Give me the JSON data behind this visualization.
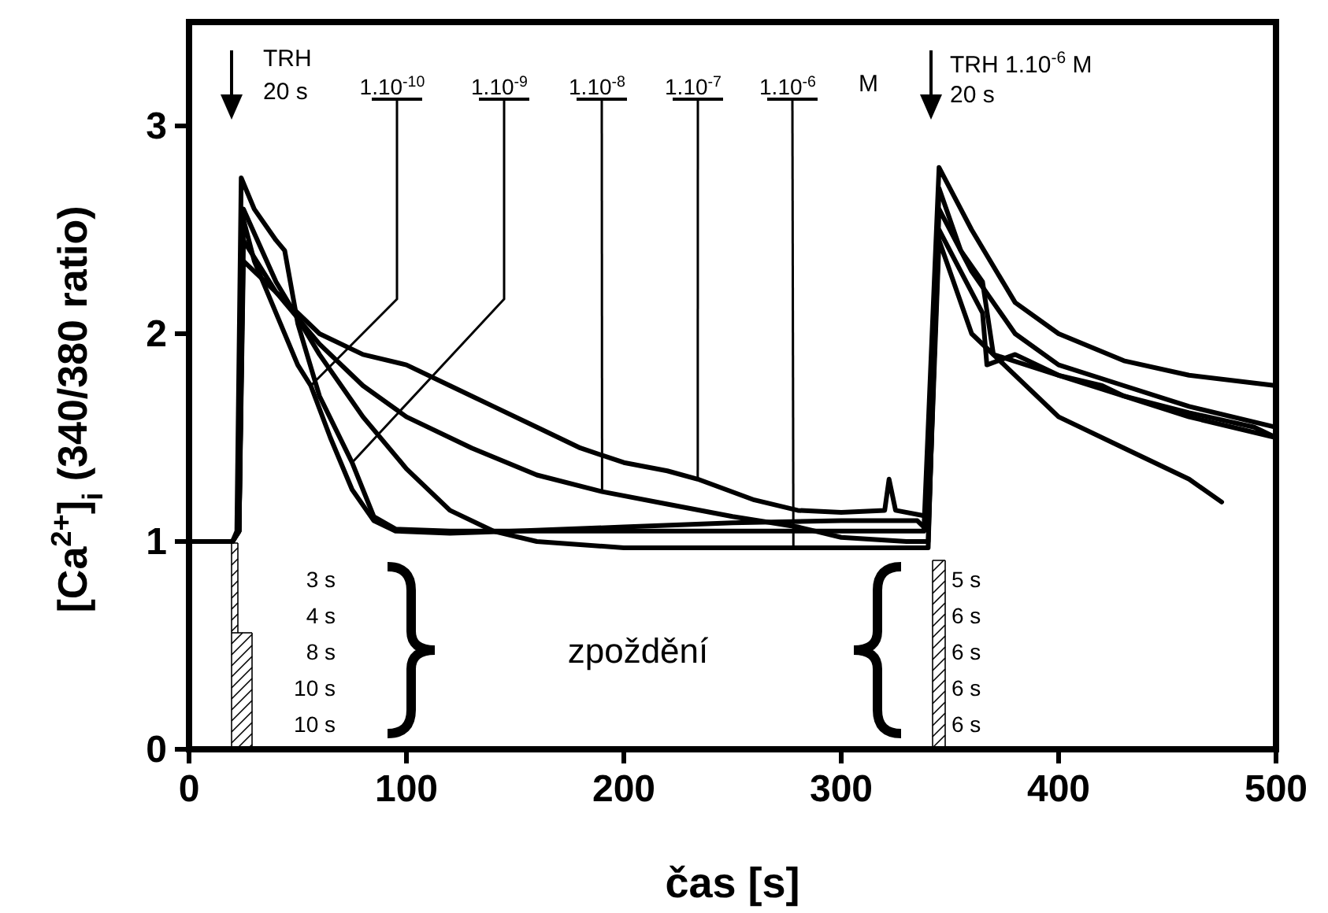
{
  "chart_data": {
    "type": "line",
    "xlabel": "čas [s]",
    "ylabel": "[Ca$^{2+}$]$_{i}$ (340/380 ratio)",
    "x": [
      0,
      20,
      23,
      25,
      30,
      40,
      50,
      56,
      65,
      75,
      85,
      95,
      120,
      150,
      200,
      250,
      300,
      335,
      340,
      345,
      360,
      380,
      400,
      430,
      460,
      475
    ],
    "xlim": [
      0,
      500
    ],
    "ylim": [
      0,
      3.5
    ],
    "xticks": [
      0,
      100,
      200,
      300,
      400,
      500
    ],
    "yticks": [
      0,
      1,
      2,
      3
    ],
    "grid": false,
    "series": [
      {
        "color": "#000000",
        "values": [
          1.0,
          1.0,
          1.05,
          2.55,
          2.35,
          2.1,
          1.85,
          1.75,
          1.5,
          1.25,
          1.1,
          1.05,
          1.04,
          1.05,
          1.07,
          1.09,
          1.1,
          1.1,
          1.05,
          2.45,
          2.0,
          1.8,
          1.6,
          1.45,
          1.3,
          1.19
        ]
      },
      {
        "color": "#000000",
        "x": [
          0,
          20,
          22,
          24,
          30,
          40,
          44,
          50,
          60,
          75,
          85,
          95,
          120,
          200,
          300,
          338,
          345,
          360,
          380,
          400,
          430,
          460,
          500
        ],
        "values": [
          1.0,
          1.0,
          1.05,
          2.75,
          2.6,
          2.45,
          2.4,
          2.05,
          1.7,
          1.38,
          1.12,
          1.06,
          1.05,
          1.05,
          1.05,
          1.05,
          2.8,
          2.5,
          2.15,
          2.0,
          1.87,
          1.8,
          1.75
        ]
      },
      {
        "color": "#000000",
        "x": [
          0,
          20,
          23,
          25,
          40,
          60,
          80,
          100,
          130,
          160,
          190,
          220,
          250,
          280,
          300,
          330,
          340,
          345,
          360,
          380,
          400,
          430,
          460,
          500
        ],
        "values": [
          1.0,
          1.0,
          1.05,
          2.45,
          2.2,
          1.95,
          1.75,
          1.6,
          1.45,
          1.32,
          1.24,
          1.18,
          1.12,
          1.07,
          1.02,
          1.0,
          1.0,
          2.6,
          2.3,
          2.0,
          1.85,
          1.75,
          1.65,
          1.55
        ]
      },
      {
        "color": "#000000",
        "x": [
          0,
          20,
          23,
          25,
          40,
          60,
          80,
          100,
          120,
          140,
          160,
          180,
          200,
          220,
          234,
          260,
          280,
          300,
          320,
          322,
          325,
          340,
          345,
          355,
          365,
          367,
          380,
          400,
          420,
          430,
          460,
          490,
          500
        ],
        "values": [
          1.0,
          1.0,
          1.05,
          2.35,
          2.2,
          2.0,
          1.9,
          1.85,
          1.75,
          1.65,
          1.55,
          1.45,
          1.38,
          1.34,
          1.3,
          1.2,
          1.15,
          1.14,
          1.15,
          1.3,
          1.15,
          1.12,
          2.5,
          2.3,
          2.1,
          1.85,
          1.9,
          1.8,
          1.75,
          1.7,
          1.62,
          1.55,
          1.5
        ]
      },
      {
        "color": "#000000",
        "x": [
          0,
          20,
          23,
          25,
          40,
          60,
          80,
          100,
          120,
          140,
          160,
          200,
          278,
          340,
          345,
          355,
          365,
          370,
          400,
          430,
          460,
          500
        ],
        "values": [
          1.0,
          1.0,
          1.05,
          2.6,
          2.25,
          1.9,
          1.6,
          1.35,
          1.15,
          1.05,
          1.0,
          0.97,
          0.97,
          0.97,
          2.7,
          2.4,
          2.25,
          1.9,
          1.8,
          1.7,
          1.6,
          1.5
        ]
      }
    ],
    "annotations": [
      "TRH",
      "20 s",
      {
        "text": "1.10$^{-10}$",
        "x": 56,
        "y": 1.75
      },
      {
        "text": "1.10$^{-9}$",
        "x": 75,
        "y": 1.38
      },
      {
        "text": "1.10$^{-8}$",
        "x": 190,
        "y": 1.24
      },
      {
        "text": "1.10$^{-7}$",
        "x": 234,
        "y": 1.3
      },
      {
        "text": "1.10$^{-6}$",
        "x": 278,
        "y": 0.97
      },
      "M",
      "TRH 1.10$^{-6}$ M",
      "20 s",
      "3 s",
      "4 s",
      "8 s",
      "10 s",
      "10 s",
      "zpoždění",
      "5 s",
      "6 s",
      "6 s",
      "6 s",
      "6 s"
    ]
  }
}
